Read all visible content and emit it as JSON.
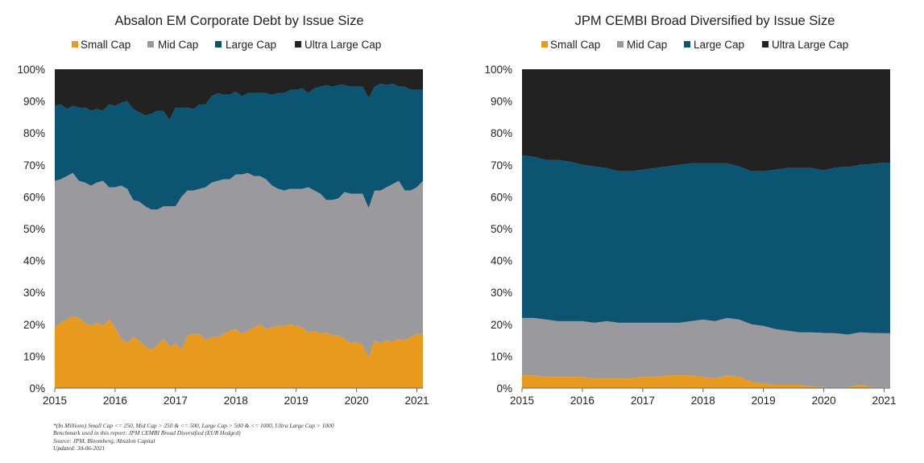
{
  "chart_data": [
    {
      "type": "area",
      "title": "Absalon EM Corporate Debt by Issue Size",
      "xlabel": "",
      "ylabel": "",
      "y_ticks": [
        "0%",
        "10%",
        "20%",
        "30%",
        "40%",
        "50%",
        "60%",
        "70%",
        "80%",
        "90%",
        "100%"
      ],
      "x_ticks": [
        "2015",
        "2016",
        "2017",
        "2018",
        "2019",
        "2020",
        "2021"
      ],
      "xlim": [
        2015,
        2021.1
      ],
      "ylim": [
        0,
        100
      ],
      "grid": false,
      "legend": "top",
      "stacked": true,
      "x": [
        2015.0,
        2015.1,
        2015.2,
        2015.3,
        2015.4,
        2015.5,
        2015.6,
        2015.7,
        2015.8,
        2015.9,
        2016.0,
        2016.1,
        2016.2,
        2016.3,
        2016.4,
        2016.5,
        2016.6,
        2016.7,
        2016.8,
        2016.9,
        2017.0,
        2017.1,
        2017.2,
        2017.3,
        2017.4,
        2017.5,
        2017.6,
        2017.7,
        2017.8,
        2017.9,
        2018.0,
        2018.1,
        2018.2,
        2018.3,
        2018.4,
        2018.5,
        2018.6,
        2018.7,
        2018.8,
        2018.9,
        2019.0,
        2019.1,
        2019.2,
        2019.3,
        2019.4,
        2019.5,
        2019.6,
        2019.7,
        2019.8,
        2019.9,
        2020.0,
        2020.1,
        2020.2,
        2020.3,
        2020.4,
        2020.5,
        2020.6,
        2020.7,
        2020.8,
        2020.9,
        2021.0,
        2021.1
      ],
      "series": [
        {
          "name": "Small Cap",
          "color": "#E89A1E",
          "values": [
            19,
            20.5,
            21.5,
            22.5,
            22,
            20.5,
            19.5,
            20.5,
            19.5,
            21.5,
            19,
            15.5,
            14,
            16,
            15,
            13,
            12,
            13.5,
            15.5,
            13,
            14,
            12,
            16.5,
            17,
            17,
            15,
            16,
            16,
            17,
            18,
            18.5,
            17,
            18,
            19,
            20,
            18.5,
            19,
            19.5,
            19.5,
            20,
            19.5,
            19,
            17.5,
            18,
            17,
            17.5,
            16.5,
            16.5,
            15.5,
            14,
            14.5,
            13.5,
            9.5,
            15,
            14,
            15,
            14.5,
            15.5,
            15,
            16,
            17,
            17
          ]
        },
        {
          "name": "Mid Cap",
          "color": "#9A9A9E",
          "values": [
            46,
            45,
            45,
            45,
            43,
            44,
            44,
            44,
            45.5,
            41.5,
            44,
            48,
            48.5,
            43,
            43.5,
            44,
            44,
            42.5,
            41.5,
            44,
            43,
            48,
            45.5,
            45,
            45.5,
            48,
            48.5,
            49,
            48.5,
            47.5,
            48.5,
            50,
            49.5,
            47.5,
            46.5,
            47,
            44.5,
            43,
            42.5,
            42.5,
            43,
            43.5,
            45.5,
            44,
            44,
            41.5,
            42.5,
            43,
            46,
            47,
            46.5,
            47.5,
            47,
            47,
            48,
            48,
            49.5,
            49.5,
            47,
            46,
            46,
            48
          ]
        },
        {
          "name": "Large Cap",
          "color": "#0B5472",
          "values": [
            23.5,
            23.5,
            21,
            21,
            23,
            23.5,
            23.5,
            23,
            22,
            26,
            25.5,
            26,
            27.5,
            28.5,
            28,
            28.5,
            30,
            31,
            30,
            27,
            31,
            28,
            26,
            25.5,
            26.5,
            26,
            27,
            27.5,
            26.5,
            26.5,
            26,
            24.5,
            25,
            26,
            26,
            27,
            28.5,
            30,
            30.5,
            31,
            31,
            31.5,
            29.5,
            32,
            33.5,
            36,
            35.5,
            35.5,
            33.5,
            33.5,
            33.5,
            33.5,
            34.5,
            32.5,
            33.5,
            32,
            31.5,
            29.5,
            32.5,
            31.5,
            30.5,
            28.5
          ]
        },
        {
          "name": "Ultra Large Cap",
          "color": "#222222",
          "values": [
            11.5,
            11,
            12.5,
            11.5,
            12,
            12,
            13,
            12.5,
            13,
            11,
            11.5,
            10.5,
            10,
            12.5,
            13.5,
            14.5,
            14,
            13,
            13,
            16,
            12,
            12,
            12,
            12.5,
            11,
            11,
            8.5,
            7.5,
            8,
            8,
            7,
            8.5,
            7.5,
            7.5,
            7.5,
            7.5,
            8,
            7.5,
            7.5,
            6.5,
            6.5,
            6,
            7.5,
            6,
            5.5,
            5,
            5.5,
            5,
            5,
            5.5,
            5.5,
            5.5,
            9,
            5.5,
            4.5,
            5,
            4.5,
            5.5,
            5.5,
            6.5,
            6.5,
            6.5
          ]
        }
      ]
    },
    {
      "type": "area",
      "title": "JPM CEMBI Broad Diversified by Issue Size",
      "xlabel": "",
      "ylabel": "",
      "y_ticks": [
        "0%",
        "10%",
        "20%",
        "30%",
        "40%",
        "50%",
        "60%",
        "70%",
        "80%",
        "90%",
        "100%"
      ],
      "x_ticks": [
        "2015",
        "2016",
        "2017",
        "2018",
        "2019",
        "2020",
        "2021"
      ],
      "xlim": [
        2015,
        2021.1
      ],
      "ylim": [
        0,
        100
      ],
      "grid": false,
      "legend": "top",
      "stacked": true,
      "x": [
        2015.0,
        2015.2,
        2015.4,
        2015.6,
        2015.8,
        2016.0,
        2016.2,
        2016.4,
        2016.6,
        2016.8,
        2017.0,
        2017.2,
        2017.4,
        2017.6,
        2017.8,
        2018.0,
        2018.2,
        2018.4,
        2018.6,
        2018.8,
        2019.0,
        2019.2,
        2019.4,
        2019.6,
        2019.8,
        2020.0,
        2020.2,
        2020.4,
        2020.6,
        2020.8,
        2021.0,
        2021.1
      ],
      "series": [
        {
          "name": "Small Cap",
          "color": "#E89A1E",
          "values": [
            4,
            4,
            3.5,
            3.5,
            3.5,
            3.5,
            3,
            3,
            3,
            3,
            3.5,
            3.5,
            4,
            4,
            4,
            3.5,
            3,
            4,
            3.5,
            2,
            1.5,
            1,
            1,
            1,
            0.5,
            0.3,
            0.2,
            0.3,
            1,
            0.3,
            0.2,
            0.2
          ]
        },
        {
          "name": "Mid Cap",
          "color": "#9A9A9E",
          "values": [
            18,
            18,
            18,
            17.5,
            17.5,
            17.5,
            17.5,
            18,
            17.5,
            17.5,
            17,
            17,
            16.5,
            16.5,
            17,
            18,
            18,
            18,
            18,
            18,
            18,
            17.5,
            17,
            16.5,
            17,
            17,
            17,
            16.5,
            16.5,
            17,
            17,
            17
          ]
        },
        {
          "name": "Large Cap",
          "color": "#0B5472",
          "values": [
            51,
            50.5,
            50,
            50.5,
            50,
            49,
            49,
            48,
            47.5,
            47.5,
            48,
            48.5,
            49,
            49.5,
            49.5,
            49,
            49.5,
            48.5,
            48,
            48,
            48.5,
            50,
            51,
            51.5,
            51.5,
            51,
            52,
            52.5,
            52.5,
            53,
            53.5,
            53.5
          ]
        },
        {
          "name": "Ultra Large Cap",
          "color": "#222222",
          "values": [
            27,
            27.5,
            28.5,
            28.5,
            29,
            30,
            30.5,
            31,
            32,
            32,
            31.5,
            31,
            30.5,
            30,
            29.5,
            29.5,
            29.5,
            29.5,
            30.5,
            32,
            32,
            31.5,
            31,
            31,
            31,
            31.7,
            30.8,
            30.7,
            30,
            29.7,
            29.3,
            29.3
          ]
        }
      ]
    }
  ],
  "footnote": {
    "line1": "*(In Millions) Small Cap <= 250, Mid Cap > 250 & <= 500, Large Cap > 500 & <= 1000, Ultra Large Cap > 1000",
    "line2": "Benchmark used in this report: JPM CEMBI Broad Diversified (EUR Hedged)",
    "line3": "Source: JPM, Bloomberg, Absalon Capital",
    "line4": "Updated: 30-06-2021"
  }
}
